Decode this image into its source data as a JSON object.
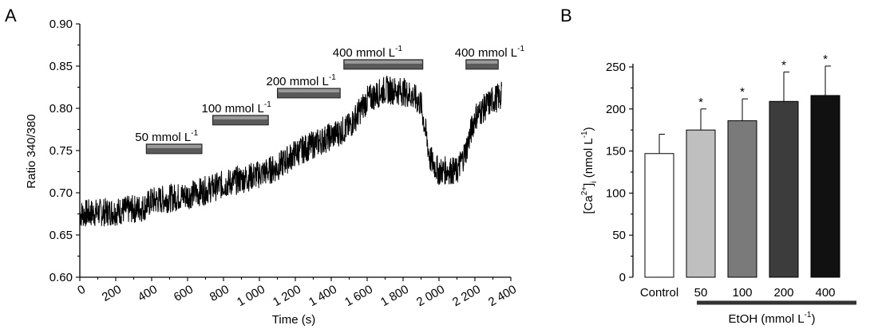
{
  "chart_data": [
    {
      "panel_label": "A",
      "type": "line",
      "xlabel": "Time (s)",
      "ylabel": "Ratio 340/380",
      "xlim": [
        0,
        2400
      ],
      "ylim": [
        0.6,
        0.9
      ],
      "xticks": [
        "0",
        "200",
        "400",
        "600",
        "800",
        "1 000",
        "1 200",
        "1 400",
        "1 600",
        "1 800",
        "2 000",
        "2 200",
        "2 400"
      ],
      "yticks": [
        "0.60",
        "0.65",
        "0.70",
        "0.75",
        "0.80",
        "0.85",
        "0.90"
      ],
      "series": [
        {
          "x": [
            0,
            200,
            350,
            400,
            600,
            700,
            800,
            1000,
            1100,
            1200,
            1400,
            1500,
            1600,
            1700,
            1800,
            1850,
            1900,
            1950,
            2000,
            2050,
            2100,
            2150,
            2200,
            2250,
            2300,
            2350
          ],
          "values": [
            0.675,
            0.678,
            0.682,
            0.69,
            0.697,
            0.703,
            0.71,
            0.722,
            0.73,
            0.747,
            0.767,
            0.778,
            0.81,
            0.822,
            0.82,
            0.815,
            0.805,
            0.74,
            0.725,
            0.727,
            0.725,
            0.75,
            0.79,
            0.8,
            0.81,
            0.815
          ]
        }
      ],
      "annotations": [
        {
          "label": "50 mmol L",
          "sup": "-1",
          "x_start": 370,
          "x_end": 680,
          "y": 0.752
        },
        {
          "label": "100 mmol L",
          "sup": "-1",
          "x_start": 740,
          "x_end": 1050,
          "y": 0.786
        },
        {
          "label": "200 mmol L",
          "sup": "-1",
          "x_start": 1100,
          "x_end": 1450,
          "y": 0.818
        },
        {
          "label": "400 mmol L",
          "sup": "-1",
          "x_start": 1470,
          "x_end": 1910,
          "y": 0.852
        },
        {
          "label": "400 mmol L",
          "sup": "-1",
          "x_start": 2150,
          "x_end": 2330,
          "y": 0.852
        }
      ]
    },
    {
      "panel_label": "B",
      "type": "bar",
      "ylabel_main": "[Ca",
      "ylabel_sup": "2+",
      "ylabel_sub": "i",
      "ylabel_tail": " (nmol L",
      "ylabel_tail_sup": "-1",
      "ylabel_end": ")",
      "xlabel": "EtOH (mmol L",
      "xlabel_sup": "-1",
      "xlabel_end": ")",
      "ylim": [
        0,
        250
      ],
      "yticks": [
        "0",
        "50",
        "100",
        "150",
        "200",
        "250"
      ],
      "categories": [
        "Control",
        "50",
        "100",
        "200",
        "400"
      ],
      "values": [
        147,
        175,
        186,
        209,
        216
      ],
      "errors": [
        23,
        25,
        26,
        35,
        35
      ],
      "significance": [
        "",
        "*",
        "*",
        "*",
        "*"
      ],
      "colors": [
        "#ffffff",
        "#bfbfbf",
        "#7a7a7a",
        "#3c3c3c",
        "#111111"
      ]
    }
  ]
}
